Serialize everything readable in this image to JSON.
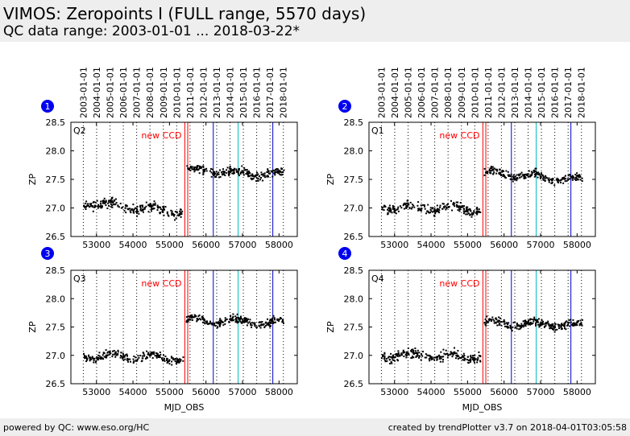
{
  "header": {
    "title": "VIMOS: Zeropoints I (FULL range, 5570 days)",
    "subtitle": "QC data range: 2003-01-01 ... 2018-03-22*"
  },
  "footer": {
    "left": "powered by QC: www.eso.org/HC",
    "right": "created by trendPlotter v3.7 on 2018-04-01T03:05:58"
  },
  "colors": {
    "header_bg": "#eeeeee",
    "points": "#000000",
    "new_ccd": "#ff0000",
    "event_blue": "#0000cc",
    "event_cyan": "#00bbbb",
    "badge": "#0000ee"
  },
  "chart_data": [
    {
      "type": "scatter",
      "panel_number": "1",
      "label": "Q2",
      "annotation": "new CCD",
      "xlabel": "",
      "ylabel": "ZP",
      "xlim": [
        52300,
        58500
      ],
      "ylim": [
        26.5,
        28.5
      ],
      "xticks": [
        53000,
        54000,
        55000,
        56000,
        57000,
        58000
      ],
      "yticks": [
        26.5,
        27.0,
        27.5,
        28.0,
        28.5
      ],
      "date_ticks": [
        "2003-01-01",
        "2004-01-01",
        "2005-01-01",
        "2006-01-01",
        "2007-01-01",
        "2008-01-01",
        "2009-01-01",
        "2010-01-01",
        "2011-01-01",
        "2012-01-01",
        "2013-01-01",
        "2014-01-01",
        "2015-01-01",
        "2016-01-01",
        "2017-01-01",
        "2018-01-01"
      ],
      "date_tick_mjd": [
        52640,
        53005,
        53371,
        53736,
        54101,
        54466,
        54832,
        55197,
        55562,
        55927,
        56293,
        56658,
        57023,
        57388,
        57754,
        58119
      ],
      "event_lines": [
        {
          "mjd": 55420,
          "color": "red"
        },
        {
          "mjd": 55500,
          "color": "red"
        },
        {
          "mjd": 56200,
          "color": "blue"
        },
        {
          "mjd": 56880,
          "color": "cyan"
        },
        {
          "mjd": 57830,
          "color": "blue"
        }
      ],
      "segments": [
        {
          "x": [
            52650,
            55380
          ],
          "y": [
            27.1,
            26.92
          ],
          "spread": 0.07,
          "n": 230
        },
        {
          "x": [
            55460,
            58150
          ],
          "y": [
            27.66,
            27.58
          ],
          "spread": 0.06,
          "n": 250
        }
      ],
      "grid": true
    },
    {
      "type": "scatter",
      "panel_number": "2",
      "label": "Q1",
      "annotation": "new CCD",
      "xlabel": "",
      "ylabel": "ZP",
      "xlim": [
        52300,
        58500
      ],
      "ylim": [
        26.5,
        28.5
      ],
      "xticks": [
        53000,
        54000,
        55000,
        56000,
        57000,
        58000
      ],
      "yticks": [
        26.5,
        27.0,
        27.5,
        28.0,
        28.5
      ],
      "date_ticks": [
        "2003-01-01",
        "2004-01-01",
        "2005-01-01",
        "2006-01-01",
        "2007-01-01",
        "2008-01-01",
        "2009-01-01",
        "2010-01-01",
        "2011-01-01",
        "2012-01-01",
        "2013-01-01",
        "2014-01-01",
        "2015-01-01",
        "2016-01-01",
        "2017-01-01",
        "2018-01-01"
      ],
      "date_tick_mjd": [
        52640,
        53005,
        53371,
        53736,
        54101,
        54466,
        54832,
        55197,
        55562,
        55927,
        56293,
        56658,
        57023,
        57388,
        57754,
        58119
      ],
      "event_lines": [
        {
          "mjd": 55420,
          "color": "red"
        },
        {
          "mjd": 55500,
          "color": "red"
        },
        {
          "mjd": 56200,
          "color": "blue"
        },
        {
          "mjd": 56880,
          "color": "cyan"
        },
        {
          "mjd": 57830,
          "color": "blue"
        }
      ],
      "segments": [
        {
          "x": [
            52650,
            55380
          ],
          "y": [
            27.0,
            26.98
          ],
          "spread": 0.07,
          "n": 220
        },
        {
          "x": [
            55460,
            58150
          ],
          "y": [
            27.62,
            27.48
          ],
          "spread": 0.06,
          "n": 240
        }
      ],
      "grid": true
    },
    {
      "type": "scatter",
      "panel_number": "3",
      "label": "Q3",
      "annotation": "new CCD",
      "xlabel": "MJD_OBS",
      "ylabel": "ZP",
      "xlim": [
        52300,
        58500
      ],
      "ylim": [
        26.5,
        28.5
      ],
      "xticks": [
        53000,
        54000,
        55000,
        56000,
        57000,
        58000
      ],
      "yticks": [
        26.5,
        27.0,
        27.5,
        28.0,
        28.5
      ],
      "date_ticks": [],
      "date_tick_mjd": [
        52640,
        53005,
        53371,
        53736,
        54101,
        54466,
        54832,
        55197,
        55562,
        55927,
        56293,
        56658,
        57023,
        57388,
        57754,
        58119
      ],
      "event_lines": [
        {
          "mjd": 55420,
          "color": "red"
        },
        {
          "mjd": 55500,
          "color": "red"
        },
        {
          "mjd": 56200,
          "color": "blue"
        },
        {
          "mjd": 56880,
          "color": "cyan"
        },
        {
          "mjd": 57830,
          "color": "blue"
        }
      ],
      "segments": [
        {
          "x": [
            52650,
            55380
          ],
          "y": [
            27.0,
            26.95
          ],
          "spread": 0.06,
          "n": 230
        },
        {
          "x": [
            55460,
            58150
          ],
          "y": [
            27.62,
            27.57
          ],
          "spread": 0.06,
          "n": 250
        }
      ],
      "grid": true
    },
    {
      "type": "scatter",
      "panel_number": "4",
      "label": "Q4",
      "annotation": "new CCD",
      "xlabel": "MJD_OBS",
      "ylabel": "ZP",
      "xlim": [
        52300,
        58500
      ],
      "ylim": [
        26.5,
        28.5
      ],
      "xticks": [
        53000,
        54000,
        55000,
        56000,
        57000,
        58000
      ],
      "yticks": [
        26.5,
        27.0,
        27.5,
        28.0,
        28.5
      ],
      "date_ticks": [],
      "date_tick_mjd": [
        52640,
        53005,
        53371,
        53736,
        54101,
        54466,
        54832,
        55197,
        55562,
        55927,
        56293,
        56658,
        57023,
        57388,
        57754,
        58119
      ],
      "event_lines": [
        {
          "mjd": 55420,
          "color": "red"
        },
        {
          "mjd": 55500,
          "color": "red"
        },
        {
          "mjd": 56200,
          "color": "blue"
        },
        {
          "mjd": 56880,
          "color": "cyan"
        },
        {
          "mjd": 57830,
          "color": "blue"
        }
      ],
      "segments": [
        {
          "x": [
            52650,
            55380
          ],
          "y": [
            27.0,
            26.98
          ],
          "spread": 0.07,
          "n": 230
        },
        {
          "x": [
            55460,
            58150
          ],
          "y": [
            27.57,
            27.53
          ],
          "spread": 0.06,
          "n": 250
        }
      ],
      "grid": true
    }
  ]
}
